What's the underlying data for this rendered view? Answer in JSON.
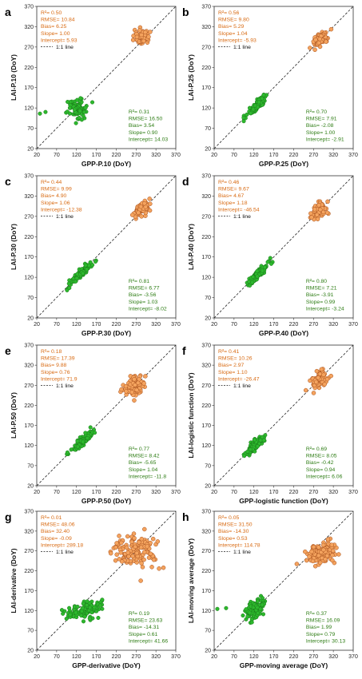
{
  "colors": {
    "spring": "#2db82d",
    "spring_edge": "#1a7a1a",
    "autumn": "#f4a35e",
    "autumn_edge": "#a8501c",
    "spring_text": "#2e7d15",
    "autumn_text": "#d86a12"
  },
  "axis": {
    "ticks": [
      "20",
      "70",
      "120",
      "170",
      "220",
      "270",
      "320",
      "370"
    ],
    "lim": [
      20,
      370
    ]
  },
  "legend_label": "1:1 line",
  "chart_data": [
    {
      "type": "scatter",
      "panel": "a",
      "xlabel": "GPP-P.10 (DoY)",
      "ylabel": "LAI-P.10 (DoY)",
      "autumn_stats": [
        "R²= 0.50",
        "RMSE= 10.84",
        "Bias= 6.25",
        "Slope= 1.00",
        "Intercept= 5.93"
      ],
      "spring_stats": [
        "R²= 0.31",
        "RMSE= 16.50",
        "Bias= 3.54",
        "Slope= 0.90",
        "Intercept= 14.03"
      ],
      "spring": {
        "center": [
          120,
          118
        ],
        "spread": [
          13,
          12
        ],
        "n": 110,
        "extra": [
          [
            28,
            106
          ],
          [
            42,
            110
          ]
        ]
      },
      "autumn": {
        "center": [
          288,
          297
        ],
        "spread": [
          9,
          10
        ],
        "n": 80
      }
    },
    {
      "type": "scatter",
      "panel": "b",
      "xlabel": "GPP-P.25 (DoY)",
      "ylabel": "LAI-P.25 (DoY)",
      "autumn_stats": [
        "R²= 0.56",
        "RMSE= 9.80",
        "Bias= 5.29",
        "Slope= 1.04",
        "Intercept= -5.93"
      ],
      "spring_stats": [
        "R²= 0.70",
        "RMSE= 7.91",
        "Bias= -2.08",
        "Slope= 1.00",
        "Intercept= -2.91"
      ],
      "spring": {
        "center": [
          128,
          126
        ],
        "spread": [
          12,
          12
        ],
        "n": 110,
        "corr": 0.9
      },
      "autumn": {
        "center": [
          288,
          290
        ],
        "spread": [
          10,
          9
        ],
        "n": 80,
        "corr": 0.6
      }
    },
    {
      "type": "scatter",
      "panel": "c",
      "xlabel": "GPP-P.30 (DoY)",
      "ylabel": "LAI-P.30 (DoY)",
      "autumn_stats": [
        "R²= 0.44",
        "RMSE= 9.99",
        "Bias= 4.90",
        "Slope= 1.06",
        "Intercept= -12.38"
      ],
      "spring_stats": [
        "R²= 0.81",
        "RMSE= 6.77",
        "Bias= -3.56",
        "Slope= 1.03",
        "Intercept= -8.02"
      ],
      "spring": {
        "center": [
          130,
          128
        ],
        "spread": [
          13,
          13
        ],
        "n": 110,
        "corr": 0.93
      },
      "autumn": {
        "center": [
          285,
          288
        ],
        "spread": [
          10,
          10
        ],
        "n": 80,
        "corr": 0.5
      }
    },
    {
      "type": "scatter",
      "panel": "d",
      "xlabel": "GPP-P.40 (DoY)",
      "ylabel": "LAI-P.40 (DoY)",
      "autumn_stats": [
        "R²= 0.46",
        "RMSE= 9.67",
        "Bias= 4.67",
        "Slope= 1.18",
        "Intercept= -46.54"
      ],
      "spring_stats": [
        "R²= 0.80",
        "RMSE= 7.21",
        "Bias= -3.91",
        "Slope= 0.99",
        "Intercept= -3.24"
      ],
      "spring": {
        "center": [
          133,
          130
        ],
        "spread": [
          13,
          13
        ],
        "n": 110,
        "corr": 0.93
      },
      "autumn": {
        "center": [
          283,
          284
        ],
        "spread": [
          10,
          10
        ],
        "n": 80,
        "corr": 0.55
      }
    },
    {
      "type": "scatter",
      "panel": "e",
      "xlabel": "GPP-P.50 (DoY)",
      "ylabel": "LAI-P.50 (DoY)",
      "autumn_stats": [
        "R²= 0.18",
        "RMSE= 17.39",
        "Bias= 9.88",
        "Slope= 0.76",
        "Intercept= 71.9"
      ],
      "spring_stats": [
        "R²= 0.77",
        "RMSE= 8.42",
        "Bias= -5.65",
        "Slope= 1.04",
        "Intercept= -11.8"
      ],
      "spring": {
        "center": [
          135,
          132
        ],
        "spread": [
          13,
          13
        ],
        "n": 110,
        "corr": 0.92
      },
      "autumn": {
        "center": [
          262,
          265
        ],
        "spread": [
          13,
          13
        ],
        "n": 90,
        "corr": 0.3
      }
    },
    {
      "type": "scatter",
      "panel": "f",
      "xlabel": "GPP-logistic function (DoY)",
      "ylabel": "LAI-logistic function (DoY)",
      "autumn_stats": [
        "R²= 0.41",
        "RMSE= 10.26",
        "Bias= 2.97",
        "Slope= 1.10",
        "Intercept= -26.47"
      ],
      "spring_stats": [
        "R²= 0.69",
        "RMSE= 8.05",
        "Bias= -0.42",
        "Slope= 0.94",
        "Intercept= 6.06"
      ],
      "spring": {
        "center": [
          122,
          120
        ],
        "spread": [
          12,
          12
        ],
        "n": 110,
        "corr": 0.85
      },
      "autumn": {
        "center": [
          285,
          284
        ],
        "spread": [
          11,
          12
        ],
        "n": 80,
        "corr": 0.5
      }
    },
    {
      "type": "scatter",
      "panel": "g",
      "xlabel": "GPP-derivative (DoY)",
      "ylabel": "LAI-derivative (DoY)",
      "autumn_stats": [
        "R²= 0.01",
        "RMSE= 48.06",
        "Bias= 32.40",
        "Slope= -0.09",
        "Intercept= 289.18"
      ],
      "spring_stats": [
        "R²= 0.19",
        "RMSE= 23.63",
        "Bias= -14.31",
        "Slope= 0.61",
        "Intercept= 41.66"
      ],
      "spring": {
        "center": [
          140,
          120
        ],
        "spread": [
          22,
          12
        ],
        "n": 120,
        "corr": 0.4
      },
      "autumn": {
        "center": [
          270,
          268
        ],
        "spread": [
          28,
          20
        ],
        "n": 140,
        "corr": 0.0
      }
    },
    {
      "type": "scatter",
      "panel": "h",
      "xlabel": "GPP-moving average (DoY)",
      "ylabel": "LAI-moving average (DoY)",
      "autumn_stats": [
        "R²= 0.05",
        "RMSE= 31.50",
        "Bias= -14.30",
        "Slope= 0.53",
        "Intercept= 114.78"
      ],
      "spring_stats": [
        "R²= 0.37",
        "RMSE= 16.09",
        "Bias= 1.99",
        "Slope= 0.79",
        "Intercept= 30.13"
      ],
      "spring": {
        "center": [
          122,
          124
        ],
        "spread": [
          14,
          13
        ],
        "n": 120,
        "corr": 0.6,
        "extra": [
          [
            28,
            124
          ],
          [
            50,
            126
          ]
        ]
      },
      "autumn": {
        "center": [
          290,
          264
        ],
        "spread": [
          20,
          15
        ],
        "n": 130,
        "corr": 0.2
      }
    }
  ]
}
